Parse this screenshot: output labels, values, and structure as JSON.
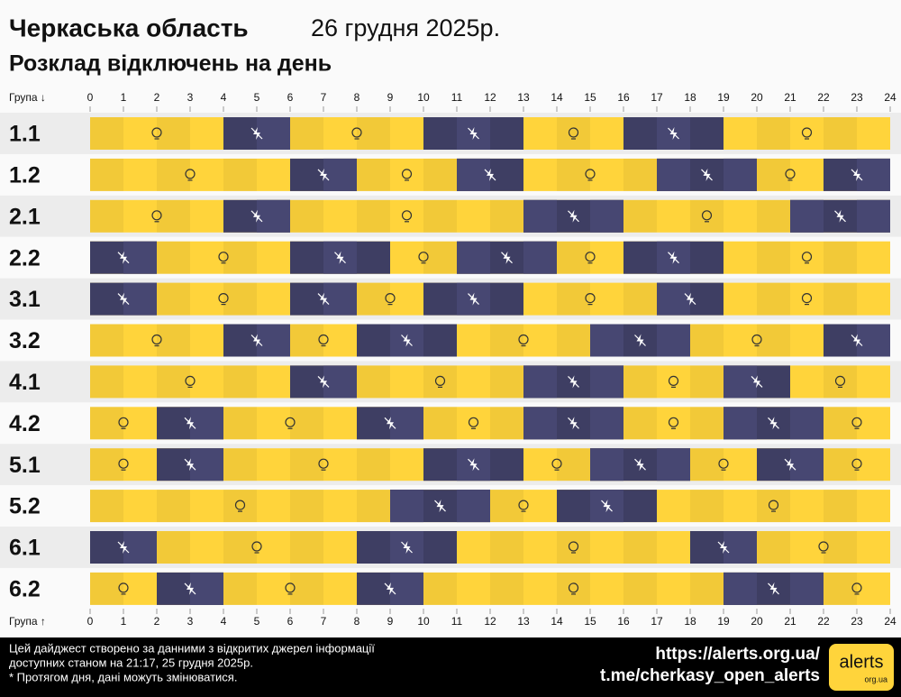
{
  "chart_data": {
    "type": "timeline",
    "title": "Черкаська область",
    "date": "26 грудня 2025р.",
    "subtitle": "Розклад відключень на день",
    "axis_label_top": "Група ↓",
    "axis_label_bottom": "Група ↑",
    "xlim": [
      0,
      24
    ],
    "xticks": [
      0,
      1,
      2,
      3,
      4,
      5,
      6,
      7,
      8,
      9,
      10,
      11,
      12,
      13,
      14,
      15,
      16,
      17,
      18,
      19,
      20,
      21,
      22,
      23,
      24
    ],
    "on_color": "#ffd43b",
    "off_color": "#3e3e63",
    "groups": [
      {
        "label": "1.1",
        "off": [
          [
            4,
            6
          ],
          [
            10,
            13
          ],
          [
            16,
            19
          ]
        ]
      },
      {
        "label": "1.2",
        "off": [
          [
            6,
            8
          ],
          [
            11,
            13
          ],
          [
            17,
            20
          ],
          [
            22,
            24
          ]
        ]
      },
      {
        "label": "2.1",
        "off": [
          [
            4,
            6
          ],
          [
            13,
            16
          ],
          [
            21,
            24
          ]
        ]
      },
      {
        "label": "2.2",
        "off": [
          [
            0,
            2
          ],
          [
            6,
            9
          ],
          [
            11,
            14
          ],
          [
            16,
            19
          ]
        ]
      },
      {
        "label": "3.1",
        "off": [
          [
            0,
            2
          ],
          [
            6,
            8
          ],
          [
            10,
            13
          ],
          [
            17,
            19
          ]
        ]
      },
      {
        "label": "3.2",
        "off": [
          [
            4,
            6
          ],
          [
            8,
            11
          ],
          [
            15,
            18
          ],
          [
            22,
            24
          ]
        ]
      },
      {
        "label": "4.1",
        "off": [
          [
            6,
            8
          ],
          [
            13,
            16
          ],
          [
            19,
            21
          ]
        ]
      },
      {
        "label": "4.2",
        "off": [
          [
            2,
            4
          ],
          [
            8,
            10
          ],
          [
            13,
            16
          ],
          [
            19,
            22
          ]
        ]
      },
      {
        "label": "5.1",
        "off": [
          [
            2,
            4
          ],
          [
            10,
            13
          ],
          [
            15,
            18
          ],
          [
            20,
            22
          ]
        ]
      },
      {
        "label": "5.2",
        "off": [
          [
            9,
            12
          ],
          [
            14,
            17
          ]
        ]
      },
      {
        "label": "6.1",
        "off": [
          [
            0,
            2
          ],
          [
            8,
            11
          ],
          [
            18,
            20
          ]
        ]
      },
      {
        "label": "6.2",
        "off": [
          [
            2,
            4
          ],
          [
            8,
            10
          ],
          [
            19,
            22
          ]
        ]
      }
    ]
  },
  "footer": {
    "notes": [
      "Цей дайджест створено за данними з відкритих джерел інформації",
      "доступних станом на 21:17, 25 грудня 2025р.",
      "* Протягом дня, дані можуть змінюватися."
    ],
    "links": [
      "https://alerts.org.ua/",
      "t.me/cherkasy_open_alerts"
    ],
    "logo": "alerts",
    "logo_domain": "org.ua"
  }
}
